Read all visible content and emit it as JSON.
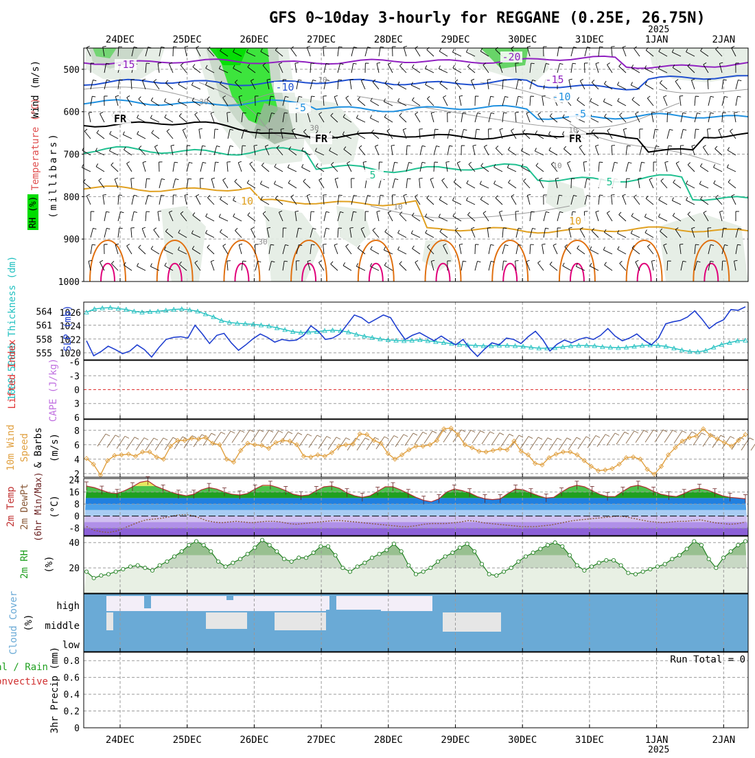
{
  "title": "GFS 0~10day 3-hourly for REGGANE (0.25E, 26.75N)",
  "year_label": "2025",
  "date_ticks": [
    "24DEC",
    "25DEC",
    "26DEC",
    "27DEC",
    "28DEC",
    "29DEC",
    "30DEC",
    "31DEC",
    "1JAN",
    "2JAN"
  ],
  "colors": {
    "rh_green": "#00dd00",
    "isotherm_purple": "#9020c0",
    "isotherm_blue": "#2050d0",
    "isotherm_lightblue": "#1e90e0",
    "isotherm_teal": "#20c090",
    "isotherm_gold": "#e0a020",
    "isotherm_orange": "#e07010",
    "isotherm_magenta": "#e0007a",
    "slp_line": "#1f3fd0",
    "thickness_line": "#20c0c0",
    "wind_speed": "#e0a040",
    "cloud_fill": "#6aaad6",
    "precip_label": "#d03030"
  },
  "chart_data": [
    {
      "type": "line",
      "name": "upper-air-cross-section",
      "ylabel_parts": [
        "Wind (m/s)",
        "Temperature (°C)",
        "RH (%)",
        "(millibars)"
      ],
      "ytick_labels": [
        "500",
        "600",
        "700",
        "800",
        "900",
        "1000"
      ],
      "y_range": [
        450,
        1000
      ],
      "isotherm_labels": [
        {
          "text": "-20",
          "series": "purple"
        },
        {
          "text": "-15",
          "series": "purple"
        },
        {
          "text": "-15",
          "series": "purple"
        },
        {
          "text": "-10",
          "series": "blue"
        },
        {
          "text": "-10",
          "series": "lightblue"
        },
        {
          "text": "-5",
          "series": "lightblue"
        },
        {
          "text": "-5",
          "series": "lightblue"
        },
        {
          "text": "FR",
          "series": "black"
        },
        {
          "text": "FR",
          "series": "black"
        },
        {
          "text": "FR",
          "series": "black"
        },
        {
          "text": "5",
          "series": "teal"
        },
        {
          "text": "5",
          "series": "teal"
        },
        {
          "text": "10",
          "series": "gold"
        },
        {
          "text": "10",
          "series": "gold"
        }
      ],
      "rh_labels": [
        "10",
        "30",
        "30",
        "30",
        "10",
        "10",
        "10"
      ]
    },
    {
      "type": "line",
      "name": "slp-thickness",
      "ylabel_left": "1000-500mb Thickness (dm)",
      "ylabel_right": "SLP (mb)",
      "yticks_thickness": [
        "564",
        "561",
        "558",
        "555"
      ],
      "yticks_slp": [
        "1026",
        "1024",
        "1022",
        "1020"
      ],
      "slp_range": [
        1019,
        1027.5
      ],
      "thickness": [
        563.8,
        564.5,
        564.7,
        564.8,
        564.6,
        564.4,
        564.0,
        563.8,
        563.9,
        564.0,
        564.2,
        564.4,
        564.5,
        564.3,
        564.0,
        563.4,
        562.8,
        562.0,
        561.6,
        561.4,
        561.3,
        561.2,
        561.0,
        560.8,
        560.4,
        560.0,
        559.6,
        559.4,
        559.5,
        559.6,
        559.8,
        559.9,
        559.8,
        559.5,
        559.0,
        558.6,
        558.3,
        558.0,
        557.8,
        557.7,
        557.6,
        557.7,
        557.8,
        557.6,
        557.4,
        557.2,
        557.0,
        556.8,
        556.7,
        556.6,
        556.5,
        556.5,
        556.6,
        556.6,
        556.5,
        556.4,
        556.2,
        556.0,
        556.0,
        556.1,
        556.3,
        556.5,
        556.6,
        556.6,
        556.5,
        556.3,
        556.2,
        556.1,
        556.2,
        556.4,
        556.6,
        556.7,
        556.6,
        556.4,
        556.0,
        555.6,
        555.3,
        555.2,
        555.5,
        556.2,
        556.8,
        557.2,
        557.6,
        557.7
      ],
      "slp": [
        1021.8,
        1019.6,
        1020.2,
        1021.0,
        1020.5,
        1019.9,
        1020.3,
        1021.2,
        1020.5,
        1019.4,
        1020.8,
        1022.0,
        1022.3,
        1022.4,
        1022.2,
        1024.1,
        1022.8,
        1021.4,
        1022.6,
        1022.9,
        1021.5,
        1020.4,
        1021.2,
        1022.1,
        1022.8,
        1022.3,
        1021.6,
        1022.0,
        1021.8,
        1021.9,
        1022.6,
        1024.0,
        1023.2,
        1022.0,
        1022.2,
        1022.8,
        1024.2,
        1025.6,
        1025.2,
        1024.4,
        1025.0,
        1025.6,
        1025.2,
        1023.5,
        1022.0,
        1022.6,
        1023.0,
        1022.4,
        1021.8,
        1022.5,
        1021.8,
        1021.2,
        1022.0,
        1020.6,
        1019.5,
        1020.6,
        1021.5,
        1021.2,
        1022.2,
        1022.0,
        1021.4,
        1022.4,
        1023.2,
        1022.0,
        1020.3,
        1021.3,
        1021.9,
        1021.5,
        1022.0,
        1022.3,
        1022.0,
        1022.6,
        1023.6,
        1022.5,
        1021.8,
        1022.2,
        1022.8,
        1021.9,
        1021.2,
        1022.2,
        1024.3,
        1024.6,
        1024.8,
        1025.3,
        1026.2,
        1025.0,
        1023.6,
        1024.4,
        1024.9,
        1026.4,
        1026.3,
        1026.8
      ]
    },
    {
      "type": "line",
      "name": "cape-lifted-index",
      "ylabel_left": "Lifted Index",
      "ylabel_right": "CAPE (J/kg)",
      "yticks": [
        "-6",
        "-3",
        "0",
        "3",
        "6"
      ]
    },
    {
      "type": "line",
      "name": "10m-wind",
      "ylabel_parts": [
        "10m Wind",
        "Speed",
        "& Barbs",
        "(m/s)"
      ],
      "yticks": [
        "8",
        "6",
        "4",
        "2"
      ],
      "y_range": [
        1.5,
        9.5
      ],
      "speed": [
        4.1,
        3.3,
        1.8,
        3.8,
        4.5,
        4.6,
        4.7,
        4.4,
        5.0,
        5.0,
        4.3,
        4.0,
        5.8,
        6.6,
        6.6,
        6.9,
        6.8,
        7.0,
        6.2,
        6.0,
        4.0,
        3.6,
        5.2,
        6.2,
        6.0,
        5.9,
        5.5,
        6.3,
        6.6,
        6.5,
        6.0,
        4.4,
        4.3,
        4.6,
        4.4,
        4.9,
        5.8,
        6.0,
        6.1,
        7.5,
        7.4,
        6.6,
        6.2,
        4.8,
        4.0,
        4.6,
        5.3,
        5.8,
        5.8,
        6.0,
        6.6,
        8.2,
        8.3,
        7.4,
        6.0,
        5.6,
        5.1,
        5.0,
        5.2,
        5.4,
        5.3,
        6.5,
        5.1,
        4.6,
        3.4,
        3.2,
        4.2,
        4.7,
        5.0,
        5.0,
        4.6,
        3.8,
        3.0,
        2.4,
        2.5,
        2.7,
        3.3,
        4.2,
        4.3,
        4.0,
        2.6,
        1.9,
        3.0,
        4.6,
        5.6,
        6.5,
        7.0,
        7.2,
        8.2,
        7.3,
        6.8,
        6.3,
        5.8,
        6.6,
        7.4
      ]
    },
    {
      "type": "area",
      "name": "2m-temp-dewpoint",
      "ylabel_parts": [
        "2m Temp",
        "2m DewPt",
        "(6hr Min/Max)",
        "(°C)"
      ],
      "yticks": [
        "24",
        "16",
        "8",
        "0",
        "-8"
      ],
      "y_range": [
        -13,
        25
      ],
      "temperature": [
        20.0,
        19.0,
        17.2,
        15.5,
        15.0,
        17.0,
        19.5,
        22.5,
        23.5,
        20.0,
        18.0,
        16.0,
        14.5,
        13.5,
        14.5,
        17.5,
        19.0,
        18.0,
        16.0,
        14.5,
        14.0,
        15.0,
        18.0,
        20.5,
        20.5,
        19.0,
        17.0,
        14.5,
        13.5,
        14.0,
        17.0,
        19.5,
        20.0,
        18.5,
        15.5,
        13.5,
        12.5,
        13.5,
        16.5,
        19.5,
        19.5,
        17.5,
        15.0,
        12.5,
        10.5,
        9.5,
        11.5,
        16.0,
        18.0,
        17.0,
        15.5,
        13.0,
        11.5,
        11.0,
        11.5,
        15.0,
        18.0,
        17.5,
        15.5,
        13.5,
        12.0,
        12.5,
        16.0,
        19.0,
        20.5,
        19.5,
        17.0,
        14.5,
        13.0,
        13.0,
        16.5,
        19.5,
        20.5,
        19.0,
        16.5,
        14.5,
        13.5,
        13.0,
        15.0,
        17.5,
        18.5,
        17.5,
        15.5,
        13.5,
        12.5,
        12.0,
        11.5
      ],
      "dewpoint": [
        -7.0,
        -9.5,
        -10.5,
        -11.0,
        -10.0,
        -8.0,
        -6.0,
        -4.0,
        -2.5,
        -2.0,
        -1.5,
        -0.5,
        0.5,
        1.0,
        0.5,
        -1.0,
        -3.0,
        -4.0,
        -4.5,
        -4.0,
        -3.5,
        -4.0,
        -4.5,
        -4.0,
        -3.5,
        -3.5,
        -4.0,
        -5.0,
        -5.5,
        -5.0,
        -4.5,
        -4.0,
        -3.5,
        -3.0,
        -3.0,
        -3.5,
        -4.0,
        -4.5,
        -5.0,
        -5.5,
        -6.0,
        -6.5,
        -7.0,
        -7.0,
        -6.5,
        -5.5,
        -5.0,
        -5.0,
        -5.0,
        -4.5,
        -4.0,
        -3.0,
        -3.5,
        -4.5,
        -5.0,
        -5.5,
        -6.0,
        -6.5,
        -7.0,
        -7.0,
        -7.0,
        -6.5,
        -6.0,
        -5.0,
        -4.0,
        -3.0,
        -2.5,
        -2.0,
        -1.5,
        -1.0,
        -0.5,
        0.0,
        -0.5,
        -1.5,
        -2.5,
        -3.5,
        -4.0,
        -4.5,
        -4.0,
        -3.5,
        -3.5,
        -3.0,
        -2.5,
        -3.5,
        -4.5,
        -5.0,
        -5.5,
        -5.0,
        -4.0
      ]
    },
    {
      "type": "area",
      "name": "2m-rh",
      "ylabel": "2m RH",
      "yunit": "(%)",
      "yticks": [
        "40",
        "20"
      ],
      "y_range": [
        0,
        45
      ],
      "rh": [
        17,
        12,
        14,
        15,
        17,
        19,
        21,
        22,
        20,
        18,
        22,
        25,
        29,
        33,
        38,
        41,
        38,
        33,
        25,
        21,
        24,
        27,
        31,
        36,
        42,
        38,
        33,
        27,
        25,
        28,
        28,
        32,
        37,
        37,
        30,
        20,
        17,
        21,
        24,
        28,
        31,
        34,
        39,
        33,
        22,
        15,
        17,
        20,
        25,
        29,
        32,
        36,
        39,
        33,
        23,
        15,
        14,
        17,
        20,
        25,
        29,
        32,
        35,
        38,
        40,
        37,
        30,
        22,
        18,
        21,
        24,
        26,
        26,
        22,
        16,
        15,
        17,
        19,
        21,
        23,
        27,
        30,
        35,
        41,
        38,
        27,
        20,
        28,
        33,
        38,
        41
      ]
    },
    {
      "type": "heatmap",
      "name": "cloud-cover",
      "ylabel": "Cloud Cover",
      "yunit": "(%)",
      "levels": [
        "high",
        "middle",
        "low"
      ]
    },
    {
      "type": "bar",
      "name": "3hr-precip",
      "ylabel_left_1": "Total / Rain",
      "ylabel_left_2": "Convective",
      "ylabel": "3hr Precip (mm)",
      "yticks": [
        "0.8",
        "0.6",
        "0.4",
        "0.2",
        "0"
      ],
      "y_range": [
        0,
        0.9
      ],
      "run_total_label": "Run Total = 0"
    }
  ]
}
